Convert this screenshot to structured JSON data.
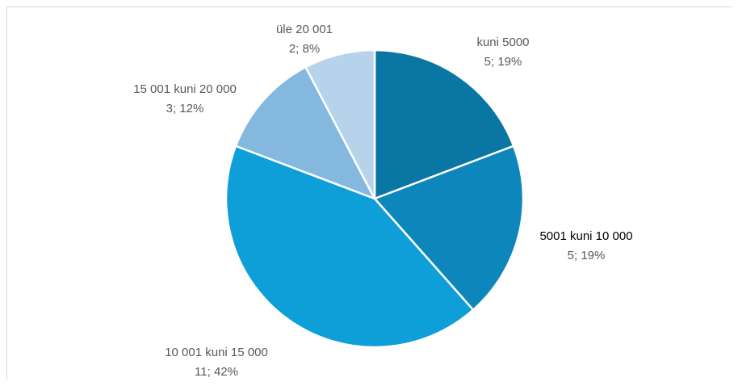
{
  "chart_data": {
    "type": "pie",
    "slices": [
      {
        "label": "kuni 5000",
        "value": 5,
        "percent": "19%",
        "value_text": "5; 19%",
        "color": "#0a76a3"
      },
      {
        "label": "5001 kuni 10 000",
        "value": 5,
        "percent": "19%",
        "value_text": "5; 19%",
        "color": "#0d87bb"
      },
      {
        "label": "10 001 kuni 15 000",
        "value": 11,
        "percent": "42%",
        "value_text": "11; 42%",
        "color": "#0e9fd8"
      },
      {
        "label": "15 001 kuni 20 000",
        "value": 3,
        "percent": "12%",
        "value_text": "3; 12%",
        "color": "#85b8df"
      },
      {
        "label": "üle 20 001",
        "value": 2,
        "percent": "8%",
        "value_text": "2; 8%",
        "color": "#b7d3eb"
      }
    ],
    "start_angle_deg": 0,
    "direction": "clockwise",
    "title": "",
    "legend": "none",
    "label_colors": {
      "default": "#595959",
      "emphasis": "#000000"
    }
  }
}
